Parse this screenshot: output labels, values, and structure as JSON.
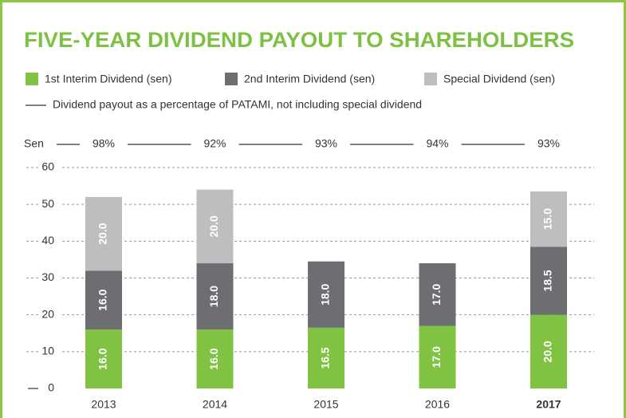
{
  "chart_data": {
    "type": "stacked_bar",
    "title": "FIVE-YEAR DIVIDEND PAYOUT TO SHAREHOLDERS",
    "y_label": "Sen",
    "categories": [
      "2013",
      "2014",
      "2015",
      "2016",
      "2017"
    ],
    "bold_index": 4,
    "series": [
      {
        "name": "1st Interim Dividend (sen)",
        "color": "#80c342",
        "values": [
          16.0,
          16.0,
          16.5,
          17.0,
          20.0
        ],
        "value_labels": [
          "16.0",
          "16.0",
          "16.5",
          "17.0",
          "20.0"
        ]
      },
      {
        "name": "2nd Interim Dividend (sen)",
        "color": "#6d6e71",
        "values": [
          16.0,
          18.0,
          18.0,
          17.0,
          18.5
        ],
        "value_labels": [
          "16.0",
          "18.0",
          "18.0",
          "17.0",
          "18.5"
        ]
      },
      {
        "name": "Special Dividend (sen)",
        "color": "#bcbec0",
        "values": [
          20.0,
          20.0,
          null,
          null,
          15.0
        ],
        "value_labels": [
          "20.0",
          "20.0",
          null,
          null,
          "15.0"
        ]
      }
    ],
    "payout": {
      "name": "Dividend payout as a percentage of PATAMI, not including special dividend",
      "values": [
        98,
        92,
        93,
        94,
        93
      ],
      "value_labels": [
        "98%",
        "92%",
        "93%",
        "94%",
        "93%"
      ]
    },
    "ylim": [
      0,
      60
    ],
    "yticks": [
      0,
      10,
      20,
      30,
      40,
      50,
      60
    ],
    "grid": true
  }
}
